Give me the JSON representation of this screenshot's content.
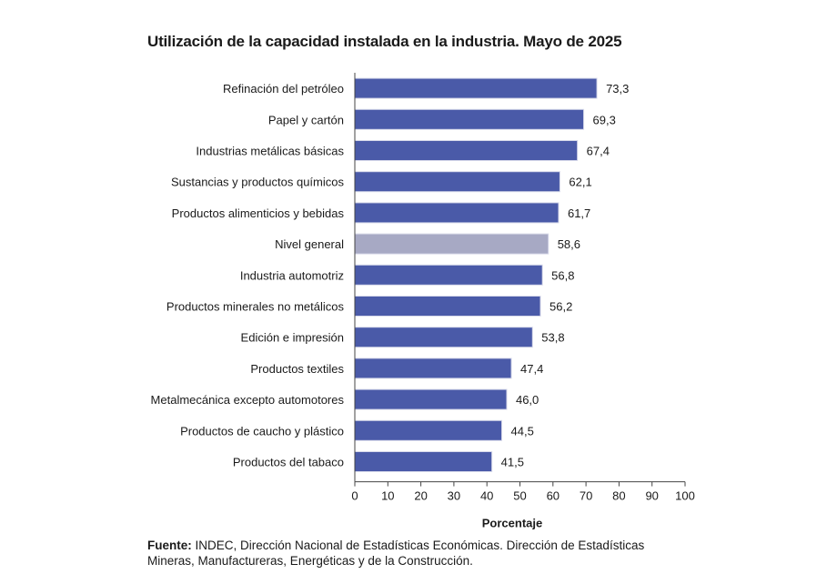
{
  "chart_data": {
    "type": "bar",
    "orientation": "horizontal",
    "title": "Utilización de la capacidad instalada en la industria. Mayo de 2025",
    "xlabel": "Porcentaje",
    "ylabel": "",
    "xlim": [
      0,
      100
    ],
    "x_ticks": [
      0,
      10,
      20,
      30,
      40,
      50,
      60,
      70,
      80,
      90,
      100
    ],
    "grid": false,
    "colors": {
      "bar": "#4a5aa8",
      "highlight": "#a7a9c4",
      "bar_edge": "#d7d9ea"
    },
    "categories": [
      "Refinación del petróleo",
      "Papel y cartón",
      "Industrias metálicas básicas",
      "Sustancias y productos químicos",
      "Productos alimenticios y bebidas",
      "Nivel general",
      "Industria automotriz",
      "Productos minerales no metálicos",
      "Edición e impresión",
      "Productos textiles",
      "Metalmecánica excepto automotores",
      "Productos de caucho y plástico",
      "Productos del tabaco"
    ],
    "values": [
      73.3,
      69.3,
      67.4,
      62.1,
      61.7,
      58.6,
      56.8,
      56.2,
      53.8,
      47.4,
      46.0,
      44.5,
      41.5
    ],
    "value_labels": [
      "73,3",
      "69,3",
      "67,4",
      "62,1",
      "61,7",
      "58,6",
      "56,8",
      "56,2",
      "53,8",
      "47,4",
      "46,0",
      "44,5",
      "41,5"
    ],
    "highlight_category": "Nivel general"
  },
  "footer": {
    "source_label": "Fuente:",
    "source_text": " INDEC, Dirección Nacional de Estadísticas Económicas. Dirección de Estadísticas Mineras, Manufactureras, Energéticas y de la Construcción."
  }
}
